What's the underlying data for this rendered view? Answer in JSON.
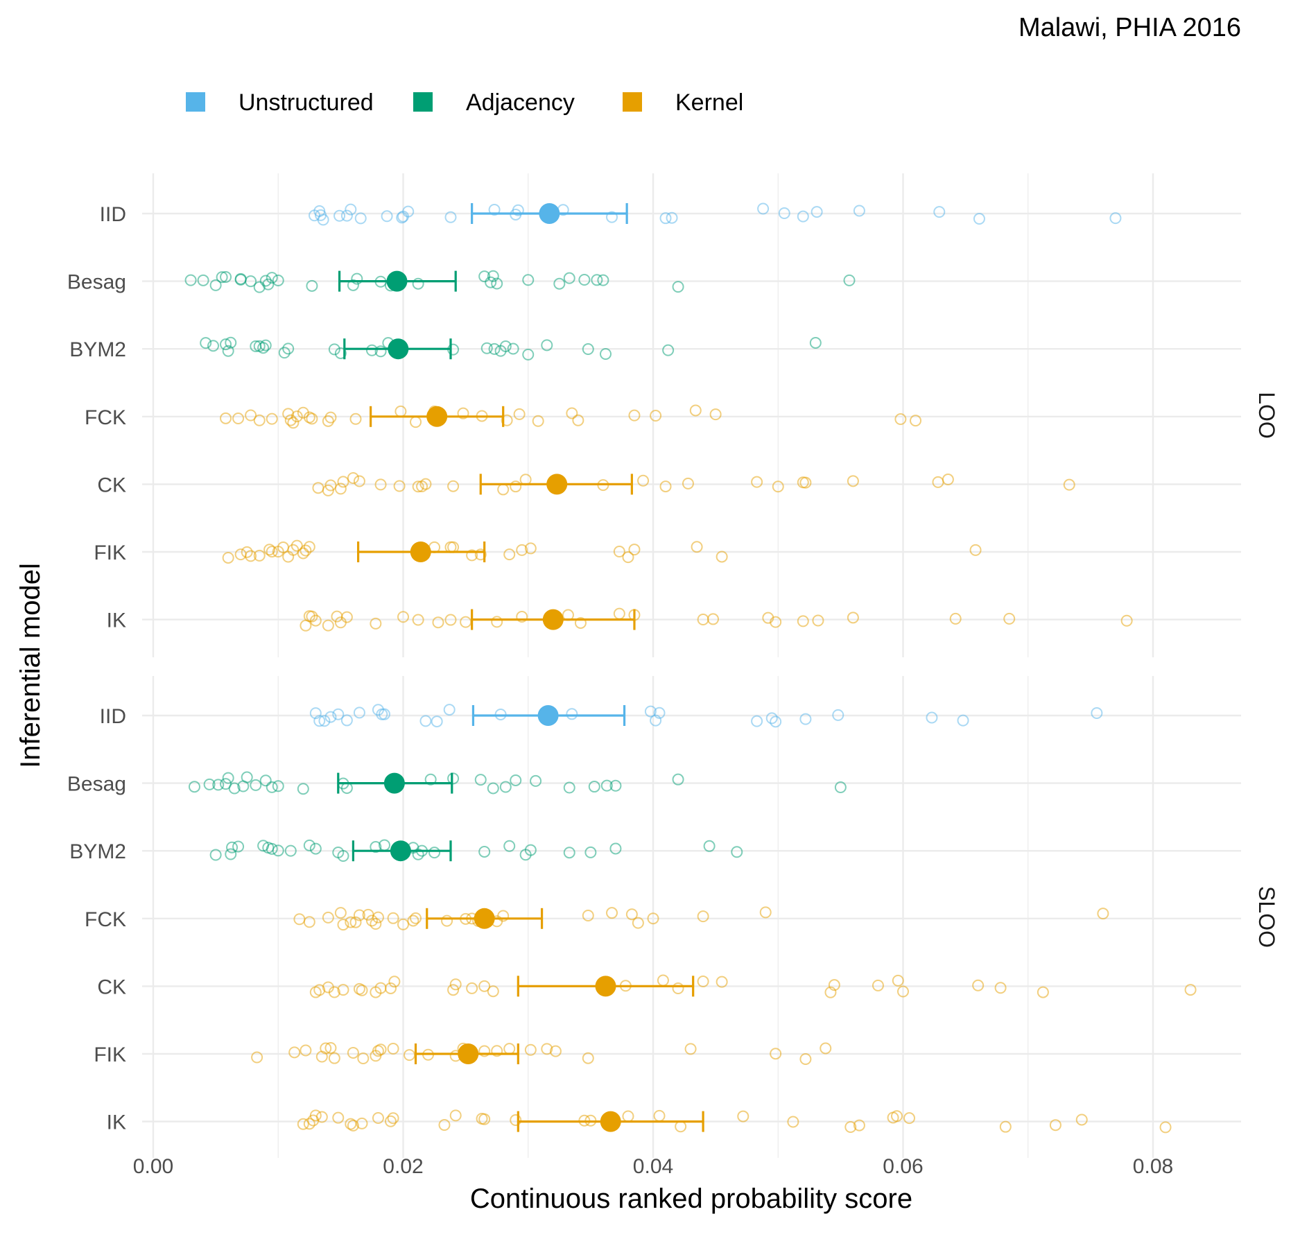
{
  "chart_data": {
    "type": "scatter",
    "subtitle": "Malawi, PHIA 2016",
    "title": "",
    "xlabel": "Continuous ranked probability score",
    "ylabel": "Inferential model",
    "xlim": [
      0,
      0.087
    ],
    "xticks": [
      0,
      0.02,
      0.04,
      0.06,
      0.08
    ],
    "xtick_labels": [
      "0.00",
      "0.02",
      "0.04",
      "0.06",
      "0.08"
    ],
    "grid": true,
    "legend_position": "top",
    "legend": [
      {
        "name": "Unstructured",
        "color": "#56B4E9"
      },
      {
        "name": "Adjacency",
        "color": "#009E73"
      },
      {
        "name": "Kernel",
        "color": "#E69F00"
      }
    ],
    "models": [
      "IID",
      "Besag",
      "BYM2",
      "FCK",
      "CK",
      "FIK",
      "IK"
    ],
    "model_group": {
      "IID": "Unstructured",
      "Besag": "Adjacency",
      "BYM2": "Adjacency",
      "FCK": "Kernel",
      "CK": "Kernel",
      "FIK": "Kernel",
      "IK": "Kernel"
    },
    "panels": [
      {
        "label": "LOO",
        "series": [
          {
            "model": "IID",
            "mean": 0.0317,
            "lower": 0.0255,
            "upper": 0.0379,
            "points": [
              0.0129,
              0.0133,
              0.0134,
              0.0136,
              0.0149,
              0.0155,
              0.0158,
              0.0166,
              0.0187,
              0.0199,
              0.02,
              0.0204,
              0.0238,
              0.0273,
              0.029,
              0.0292,
              0.0328,
              0.0367,
              0.041,
              0.0415,
              0.0488,
              0.0505,
              0.052,
              0.0531,
              0.0565,
              0.0629,
              0.0661,
              0.077
            ]
          },
          {
            "model": "Besag",
            "mean": 0.0195,
            "lower": 0.0149,
            "upper": 0.0242,
            "points": [
              0.003,
              0.004,
              0.005,
              0.0055,
              0.0058,
              0.007,
              0.007,
              0.0078,
              0.0085,
              0.009,
              0.0092,
              0.0095,
              0.01,
              0.0127,
              0.016,
              0.0163,
              0.0182,
              0.019,
              0.0212,
              0.0265,
              0.027,
              0.0272,
              0.0275,
              0.03,
              0.0325,
              0.0333,
              0.0345,
              0.0355,
              0.036,
              0.042,
              0.0557
            ]
          },
          {
            "model": "BYM2",
            "mean": 0.0196,
            "lower": 0.0153,
            "upper": 0.0238,
            "points": [
              0.0042,
              0.0048,
              0.0058,
              0.006,
              0.0062,
              0.0082,
              0.0085,
              0.0088,
              0.009,
              0.0105,
              0.0108,
              0.0145,
              0.015,
              0.0175,
              0.0182,
              0.0188,
              0.024,
              0.0267,
              0.0273,
              0.0278,
              0.0282,
              0.0288,
              0.03,
              0.0315,
              0.0348,
              0.0362,
              0.0412,
              0.053
            ]
          },
          {
            "model": "FCK",
            "mean": 0.0227,
            "lower": 0.0174,
            "upper": 0.028,
            "points": [
              0.0058,
              0.0068,
              0.0078,
              0.0085,
              0.0095,
              0.0108,
              0.011,
              0.0112,
              0.0115,
              0.012,
              0.0125,
              0.0127,
              0.014,
              0.0142,
              0.0162,
              0.0198,
              0.021,
              0.0225,
              0.0248,
              0.0263,
              0.0283,
              0.0293,
              0.0308,
              0.0335,
              0.034,
              0.0385,
              0.0402,
              0.0434,
              0.045,
              0.0598,
              0.061
            ]
          },
          {
            "model": "CK",
            "mean": 0.0323,
            "lower": 0.0262,
            "upper": 0.0383,
            "points": [
              0.0132,
              0.014,
              0.0142,
              0.015,
              0.0152,
              0.016,
              0.0165,
              0.0182,
              0.0197,
              0.0212,
              0.0215,
              0.0218,
              0.024,
              0.028,
              0.029,
              0.0298,
              0.036,
              0.0392,
              0.041,
              0.0428,
              0.0483,
              0.05,
              0.052,
              0.0522,
              0.056,
              0.0628,
              0.0636,
              0.0733
            ]
          },
          {
            "model": "FIK",
            "mean": 0.0214,
            "lower": 0.0164,
            "upper": 0.0265,
            "points": [
              0.006,
              0.007,
              0.0075,
              0.0078,
              0.0085,
              0.0093,
              0.0095,
              0.01,
              0.0104,
              0.0108,
              0.0112,
              0.0115,
              0.012,
              0.0122,
              0.0125,
              0.0225,
              0.0238,
              0.024,
              0.0255,
              0.0262,
              0.0285,
              0.0295,
              0.0302,
              0.0373,
              0.038,
              0.0385,
              0.0435,
              0.0455,
              0.0658
            ]
          },
          {
            "model": "IK",
            "mean": 0.032,
            "lower": 0.0255,
            "upper": 0.0385,
            "points": [
              0.0122,
              0.0125,
              0.0127,
              0.013,
              0.014,
              0.0147,
              0.015,
              0.0155,
              0.0178,
              0.02,
              0.0212,
              0.0228,
              0.0238,
              0.025,
              0.0275,
              0.0295,
              0.0332,
              0.0342,
              0.0373,
              0.0385,
              0.044,
              0.0448,
              0.0492,
              0.0498,
              0.052,
              0.0532,
              0.056,
              0.0642,
              0.0685,
              0.0779
            ]
          }
        ]
      },
      {
        "label": "SLOO",
        "series": [
          {
            "model": "IID",
            "mean": 0.0316,
            "lower": 0.0256,
            "upper": 0.0377,
            "points": [
              0.013,
              0.0133,
              0.0137,
              0.0142,
              0.0148,
              0.0155,
              0.0165,
              0.018,
              0.0183,
              0.0185,
              0.0218,
              0.0227,
              0.0237,
              0.0278,
              0.0335,
              0.0398,
              0.0402,
              0.0405,
              0.0483,
              0.0495,
              0.0498,
              0.0522,
              0.0548,
              0.0623,
              0.0648,
              0.0755
            ]
          },
          {
            "model": "Besag",
            "mean": 0.0193,
            "lower": 0.0148,
            "upper": 0.0239,
            "points": [
              0.0033,
              0.0045,
              0.0052,
              0.0058,
              0.006,
              0.0065,
              0.0072,
              0.0075,
              0.0082,
              0.009,
              0.0095,
              0.01,
              0.012,
              0.0152,
              0.0155,
              0.0222,
              0.024,
              0.0262,
              0.0272,
              0.0282,
              0.029,
              0.0306,
              0.0333,
              0.0353,
              0.0363,
              0.037,
              0.042,
              0.055
            ]
          },
          {
            "model": "BYM2",
            "mean": 0.0198,
            "lower": 0.016,
            "upper": 0.0238,
            "points": [
              0.005,
              0.0062,
              0.0063,
              0.0068,
              0.0088,
              0.0092,
              0.0095,
              0.01,
              0.011,
              0.0125,
              0.013,
              0.0148,
              0.0152,
              0.0178,
              0.0185,
              0.0208,
              0.0212,
              0.0215,
              0.0225,
              0.0265,
              0.0285,
              0.0298,
              0.0302,
              0.0333,
              0.035,
              0.037,
              0.0445,
              0.0467
            ]
          },
          {
            "model": "FCK",
            "mean": 0.0265,
            "lower": 0.0219,
            "upper": 0.0311,
            "points": [
              0.0117,
              0.0125,
              0.014,
              0.015,
              0.0152,
              0.0158,
              0.0162,
              0.0165,
              0.0172,
              0.0175,
              0.0178,
              0.018,
              0.0192,
              0.02,
              0.0208,
              0.021,
              0.0235,
              0.025,
              0.0255,
              0.026,
              0.0275,
              0.028,
              0.0348,
              0.0367,
              0.0383,
              0.0388,
              0.04,
              0.044,
              0.049,
              0.076
            ]
          },
          {
            "model": "CK",
            "mean": 0.0362,
            "lower": 0.0292,
            "upper": 0.0432,
            "points": [
              0.013,
              0.0133,
              0.014,
              0.0145,
              0.0152,
              0.0165,
              0.0167,
              0.0178,
              0.0182,
              0.019,
              0.0193,
              0.024,
              0.0242,
              0.0255,
              0.0265,
              0.0272,
              0.0378,
              0.0408,
              0.042,
              0.044,
              0.0455,
              0.0542,
              0.0545,
              0.058,
              0.0596,
              0.06,
              0.066,
              0.0678,
              0.0712,
              0.083
            ]
          },
          {
            "model": "FIK",
            "mean": 0.0252,
            "lower": 0.021,
            "upper": 0.0292,
            "points": [
              0.0083,
              0.0113,
              0.0122,
              0.0135,
              0.0138,
              0.0142,
              0.0145,
              0.016,
              0.0168,
              0.0178,
              0.018,
              0.0182,
              0.0192,
              0.0205,
              0.022,
              0.0242,
              0.0248,
              0.0265,
              0.0275,
              0.0285,
              0.0302,
              0.0315,
              0.0322,
              0.0348,
              0.043,
              0.0498,
              0.0522,
              0.0538
            ]
          },
          {
            "model": "IK",
            "mean": 0.0366,
            "lower": 0.0292,
            "upper": 0.044,
            "points": [
              0.012,
              0.0125,
              0.0128,
              0.013,
              0.0135,
              0.0148,
              0.0158,
              0.016,
              0.0167,
              0.018,
              0.019,
              0.0192,
              0.0233,
              0.0242,
              0.0263,
              0.0265,
              0.029,
              0.0345,
              0.035,
              0.038,
              0.0405,
              0.0422,
              0.0472,
              0.0512,
              0.0558,
              0.0565,
              0.0592,
              0.0595,
              0.0605,
              0.0682,
              0.0722,
              0.0743,
              0.081
            ]
          }
        ]
      }
    ]
  }
}
